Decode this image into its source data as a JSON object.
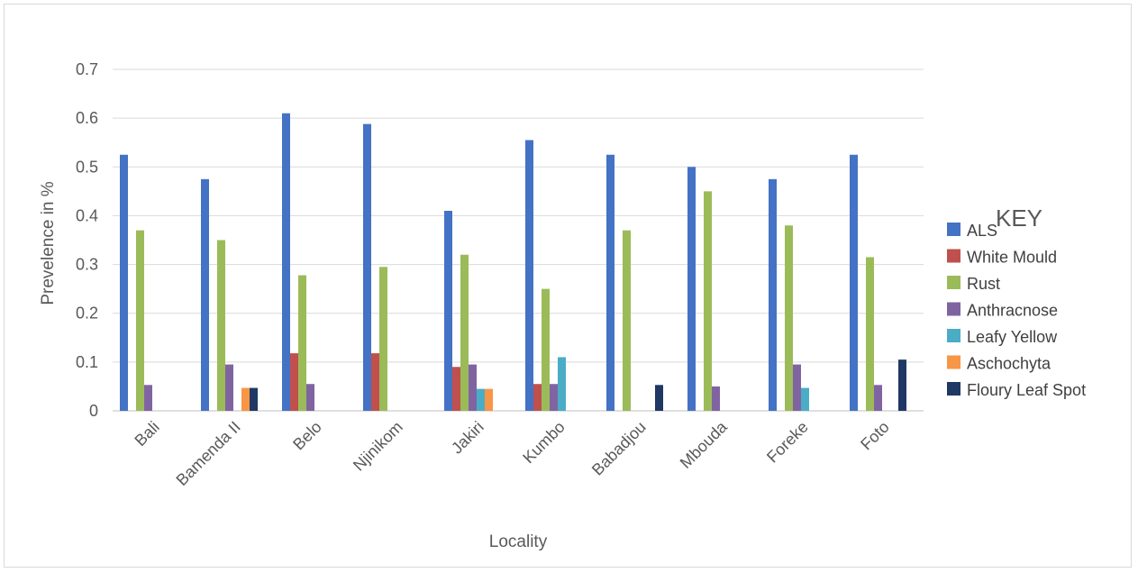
{
  "chart_data": {
    "type": "bar",
    "title": "",
    "xlabel": "Locality",
    "ylabel": "Prevelence in %",
    "ylim": [
      0,
      0.7
    ],
    "yticks": [
      "0",
      "0.1",
      "0.2",
      "0.3",
      "0.4",
      "0.5",
      "0.6",
      "0.7"
    ],
    "grid": true,
    "legend_title": "KEY",
    "legend_position": "right",
    "categories": [
      "Bali",
      "Bamenda II",
      "Belo",
      "Njinikom",
      "Jakiri",
      "Kumbo",
      "Babadjou",
      "Mbouda",
      "Foreke",
      "Foto"
    ],
    "series": [
      {
        "name": "ALS",
        "color": "#4472C4",
        "values": [
          0.525,
          0.475,
          0.61,
          0.588,
          0.41,
          0.555,
          0.525,
          0.5,
          0.475,
          0.525
        ]
      },
      {
        "name": "White Mould",
        "color": "#C0504D",
        "values": [
          0,
          0,
          0.118,
          0.118,
          0.09,
          0.055,
          0,
          0,
          0,
          0
        ]
      },
      {
        "name": "Rust",
        "color": "#9BBB59",
        "values": [
          0.37,
          0.35,
          0.278,
          0.295,
          0.32,
          0.25,
          0.37,
          0.45,
          0.38,
          0.315
        ]
      },
      {
        "name": "Anthracnose",
        "color": "#8064A2",
        "values": [
          0.053,
          0.095,
          0.055,
          0,
          0.095,
          0.055,
          0,
          0.05,
          0.095,
          0.053
        ]
      },
      {
        "name": "Leafy Yellow",
        "color": "#4BACC6",
        "values": [
          0,
          0,
          0,
          0,
          0.045,
          0.11,
          0,
          0,
          0.047,
          0
        ]
      },
      {
        "name": "Aschochyta",
        "color": "#F79646",
        "values": [
          0,
          0.047,
          0,
          0,
          0.045,
          0,
          0,
          0,
          0,
          0
        ]
      },
      {
        "name": "Floury Leaf Spot",
        "color": "#1F3864",
        "values": [
          0,
          0.047,
          0,
          0,
          0,
          0,
          0.053,
          0,
          0,
          0.105
        ]
      }
    ]
  }
}
